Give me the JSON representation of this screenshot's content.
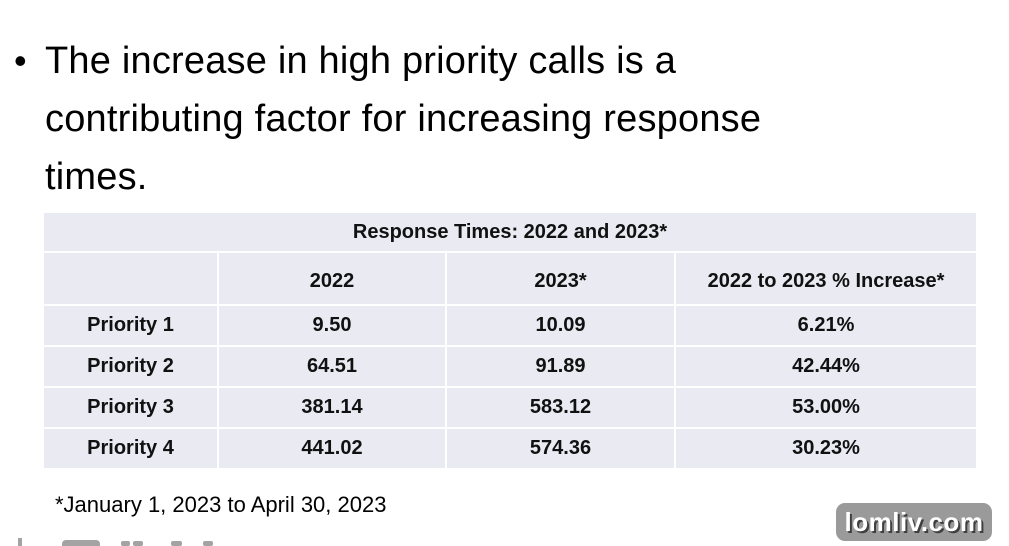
{
  "slide": {
    "bullet_lines": [
      "The increase in high priority calls is a",
      "contributing factor for increasing response",
      "times."
    ],
    "footnote": "*January 1, 2023 to April 30, 2023",
    "watermark": "lomliv.com"
  },
  "chart_data": {
    "type": "table",
    "title": "Response Times: 2022 and 2023*",
    "columns": [
      "",
      "2022",
      "2023*",
      "2022 to 2023 % Increase*"
    ],
    "rows": [
      [
        "Priority 1",
        "9.50",
        "10.09",
        "6.21%"
      ],
      [
        "Priority 2",
        "64.51",
        "91.89",
        "42.44%"
      ],
      [
        "Priority 3",
        "381.14",
        "583.12",
        "53.00%"
      ],
      [
        "Priority 4",
        "441.02",
        "574.36",
        "30.23%"
      ]
    ]
  },
  "colors": {
    "table_background": "#e9eaf2",
    "grid_line": "#ffffff",
    "text": "#000000",
    "watermark_background": "#9a9a9a",
    "watermark_text": "#ffffff"
  }
}
